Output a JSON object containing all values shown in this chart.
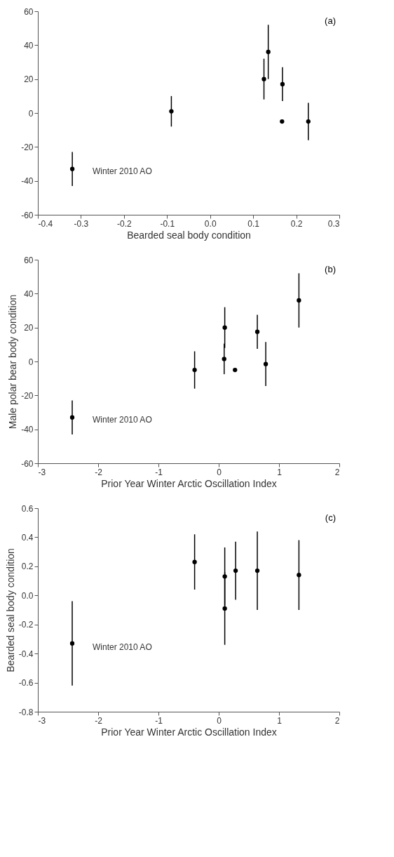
{
  "chart_data": [
    {
      "type": "scatter",
      "xlabel": "Bearded seal body condition",
      "marker": "circle",
      "color": "#000000",
      "x": [
        -0.32,
        -0.09,
        0.125,
        0.135,
        0.168,
        0.167,
        0.228
      ],
      "values": [
        -33,
        1,
        20,
        36,
        17,
        -5,
        -5
      ],
      "errors": [
        10,
        9,
        12,
        16,
        10,
        null,
        11
      ],
      "xlim": [
        -0.4,
        0.3
      ],
      "ylim": [
        -60,
        60
      ],
      "xticks": [
        -0.4,
        -0.3,
        -0.2,
        -0.1,
        {
          "value": 0,
          "label": "0.0"
        },
        0.1,
        0.2,
        0.3
      ],
      "yticks": [
        -60,
        -40,
        -20,
        0,
        20,
        40,
        60
      ],
      "annotations": [
        "(a)",
        "Winter 2010 AO"
      ]
    },
    {
      "type": "scatter",
      "xlabel": "Prior Year Winter Arctic Oscillation Index",
      "ylabel": "Male polar bear body condition",
      "marker": "circle",
      "color": "#000000",
      "x": [
        -2.43,
        -0.4,
        0.1,
        0.09,
        0.27,
        0.64,
        0.78,
        1.33
      ],
      "values": [
        -33,
        -5,
        20,
        1.5,
        -5,
        17.5,
        -1.5,
        36
      ],
      "errors": [
        10,
        11,
        12,
        9,
        null,
        10,
        13,
        16
      ],
      "xlim": [
        -3,
        2
      ],
      "ylim": [
        -60,
        60
      ],
      "xticks": [
        -3,
        -2,
        -1,
        0,
        1,
        2
      ],
      "yticks": [
        -60,
        -40,
        -20,
        0,
        20,
        40,
        60
      ],
      "annotations": [
        "(b)",
        "Winter 2010 AO"
      ]
    },
    {
      "type": "scatter",
      "xlabel": "Prior Year Winter Arctic Oscillation Index",
      "ylabel": "Bearded seal body condition",
      "marker": "circle",
      "color": "#000000",
      "x": [
        -2.43,
        -0.4,
        0.1,
        0.1,
        0.28,
        0.64,
        1.33
      ],
      "values": [
        -0.33,
        0.23,
        0.13,
        -0.09,
        0.17,
        0.17,
        0.14
      ],
      "errors": [
        0.29,
        0.19,
        0.2,
        0.25,
        0.2,
        0.27,
        0.24
      ],
      "xlim": [
        -3,
        2
      ],
      "ylim": [
        -0.8,
        0.6
      ],
      "xticks": [
        -3,
        -2,
        -1,
        0,
        1,
        2
      ],
      "yticks": [
        -0.8,
        -0.6,
        -0.4,
        -0.2,
        {
          "value": 0,
          "label": "0.0"
        },
        0.2,
        0.4,
        0.6
      ],
      "annotations": [
        "(c)",
        "Winter 2010 AO"
      ]
    }
  ]
}
